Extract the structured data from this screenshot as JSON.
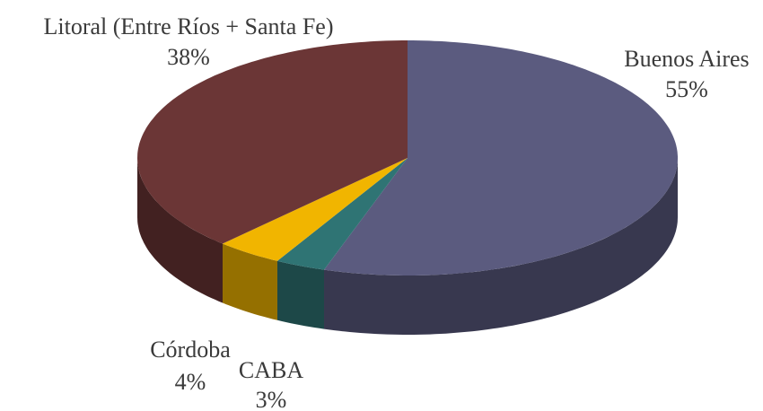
{
  "chart_data": {
    "type": "pie",
    "categories": [
      "Buenos Aires",
      "CABA",
      "Córdoba",
      "Litoral (Entre Ríos + Santa Fe)"
    ],
    "values": [
      55,
      3,
      4,
      38
    ],
    "value_labels": [
      "55%",
      "3%",
      "4%",
      "38%"
    ],
    "colors": [
      "#5b5b7f",
      "#2f7474",
      "#f1b500",
      "#6b3636"
    ]
  }
}
